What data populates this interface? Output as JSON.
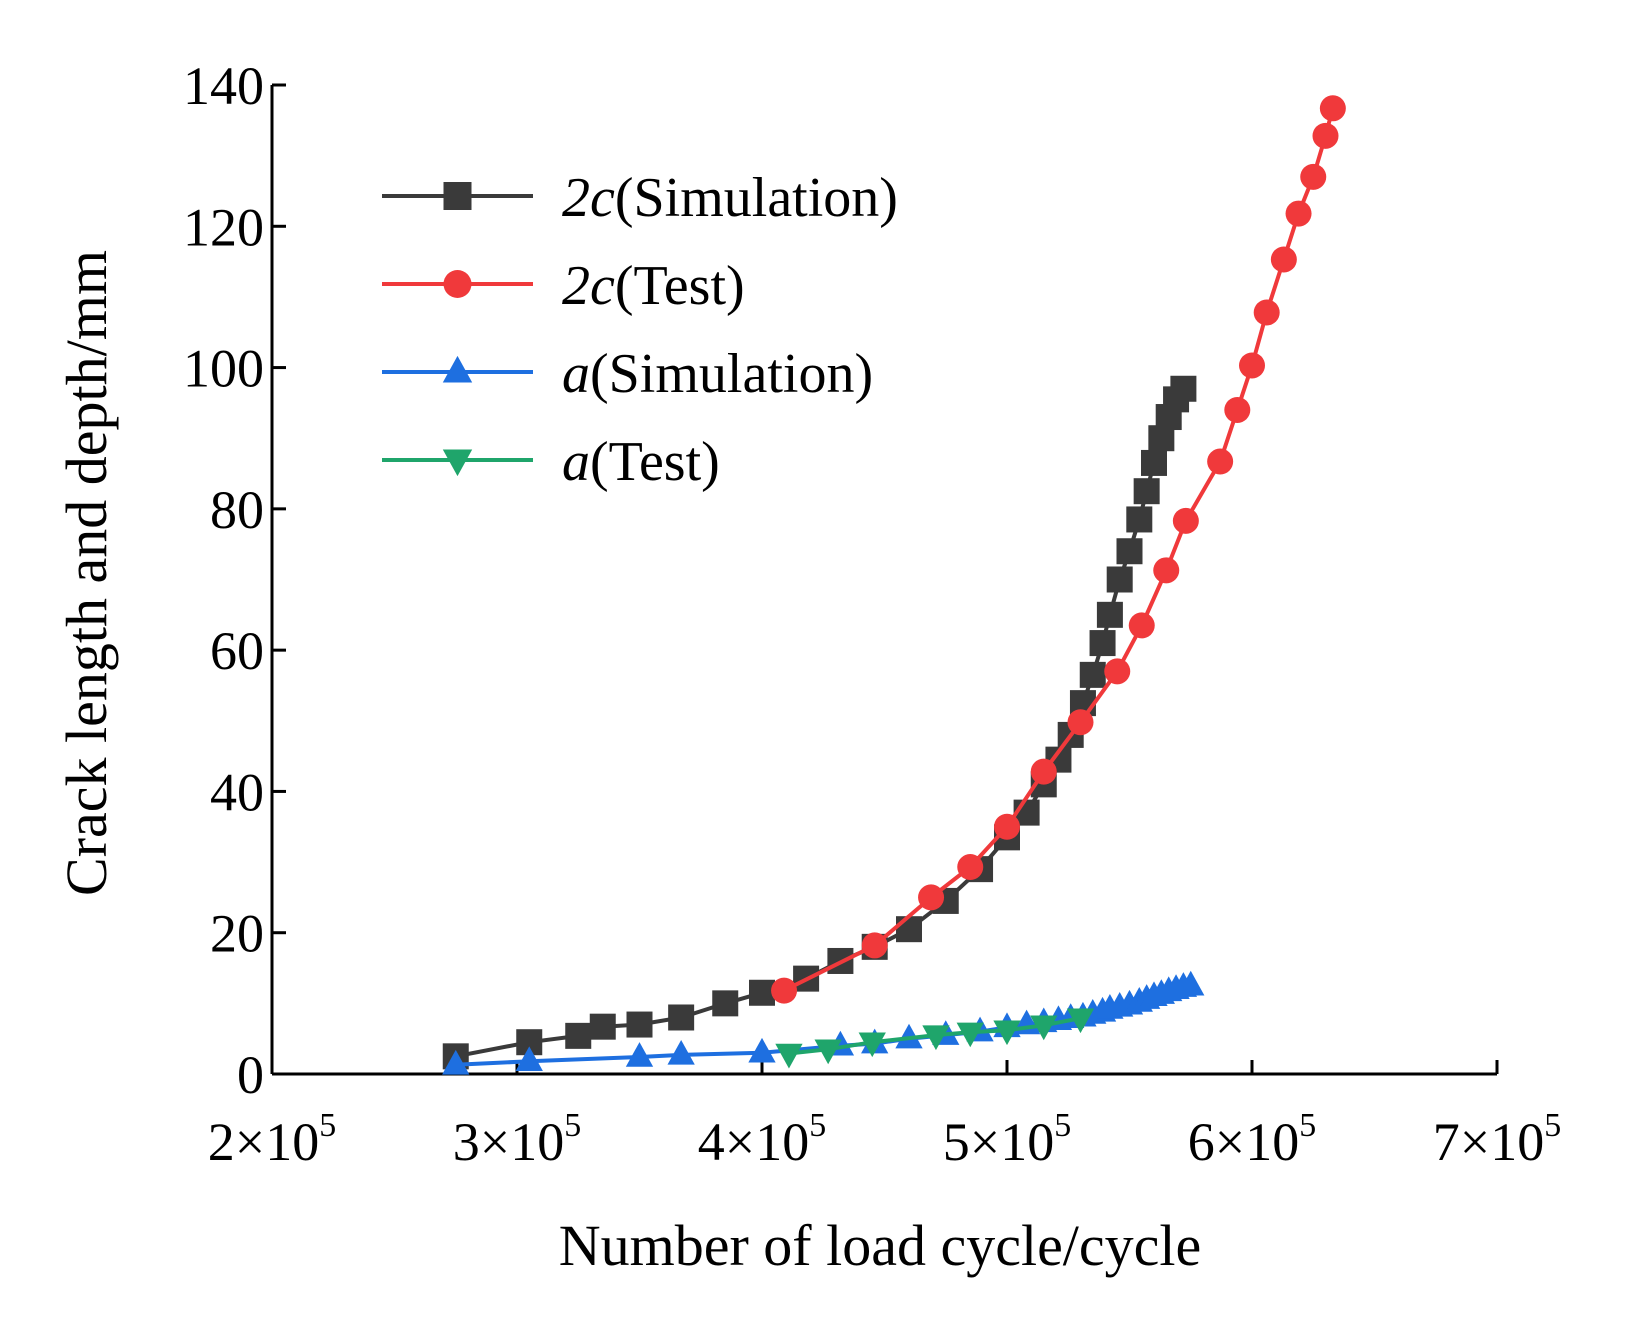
{
  "chart_data": {
    "type": "line",
    "title": "",
    "xlabel": "Number of load cycle/cycle",
    "ylabel": "Crack length and depth/mm",
    "xlim": [
      200000,
      700000
    ],
    "ylim": [
      0,
      140
    ],
    "x_ticks": [
      {
        "value": 200000,
        "mantissa": "2",
        "times": "×10",
        "exp": "5"
      },
      {
        "value": 300000,
        "mantissa": "3",
        "times": "×10",
        "exp": "5"
      },
      {
        "value": 400000,
        "mantissa": "4",
        "times": "×10",
        "exp": "5"
      },
      {
        "value": 500000,
        "mantissa": "5",
        "times": "×10",
        "exp": "5"
      },
      {
        "value": 600000,
        "mantissa": "6",
        "times": "×10",
        "exp": "5"
      },
      {
        "value": 700000,
        "mantissa": "7",
        "times": "×10",
        "exp": "5"
      }
    ],
    "y_ticks": [
      {
        "value": 0,
        "label": "0"
      },
      {
        "value": 20,
        "label": "20"
      },
      {
        "value": 40,
        "label": "40"
      },
      {
        "value": 60,
        "label": "60"
      },
      {
        "value": 80,
        "label": "80"
      },
      {
        "value": 100,
        "label": "100"
      },
      {
        "value": 120,
        "label": "120"
      },
      {
        "value": 140,
        "label": "140"
      }
    ],
    "legend_position": "top-left",
    "series": [
      {
        "name": "2c(Simulation)",
        "legend_symbol": "2c",
        "legend_suffix": "(Simulation)",
        "color": "#3a3a3a",
        "marker": "square",
        "x": [
          275000,
          305000,
          325000,
          335000,
          350000,
          367000,
          385000,
          400000,
          418000,
          432000,
          446000,
          460000,
          475000,
          489000,
          500000,
          508000,
          515000,
          521000,
          526000,
          531000,
          535000,
          539000,
          542000,
          546000,
          550000,
          554000,
          557000,
          560000,
          563000,
          566000,
          569000,
          572000
        ],
        "y": [
          2.5,
          4.5,
          5.4,
          6.7,
          7.0,
          8.0,
          10.0,
          11.5,
          13.5,
          16.0,
          18.0,
          20.5,
          24.5,
          29.0,
          33.5,
          37.0,
          41.0,
          44.5,
          48.0,
          52.5,
          56.5,
          61.0,
          65.0,
          70.0,
          74.0,
          78.5,
          82.5,
          86.5,
          90.0,
          93.0,
          95.5,
          97.0
        ]
      },
      {
        "name": "2c(Test)",
        "legend_symbol": "2c",
        "legend_suffix": "(Test)",
        "color": "#f0393b",
        "marker": "circle",
        "x": [
          409000,
          446000,
          469000,
          485000,
          500000,
          515000,
          530000,
          545000,
          555000,
          565000,
          573000,
          587000,
          594000,
          600000,
          606000,
          613000,
          619000,
          625000,
          630000,
          633000
        ],
        "y": [
          11.8,
          18.2,
          25.0,
          29.3,
          35.0,
          42.8,
          49.8,
          57.0,
          63.5,
          71.3,
          78.3,
          86.7,
          94.0,
          100.3,
          107.8,
          115.3,
          121.8,
          127.0,
          132.8,
          136.7
        ]
      },
      {
        "name": "a(Simulation)",
        "legend_symbol": "a",
        "legend_suffix": "(Simulation)",
        "color": "#1e6fe0",
        "marker": "triangle-up",
        "x": [
          275000,
          305000,
          350000,
          367000,
          400000,
          432000,
          446000,
          460000,
          475000,
          489000,
          500000,
          508000,
          515000,
          521000,
          526000,
          531000,
          535000,
          539000,
          542000,
          546000,
          550000,
          554000,
          557000,
          560000,
          563000,
          566000,
          569000,
          572000,
          575000
        ],
        "y": [
          1.3,
          1.8,
          2.4,
          2.7,
          3.0,
          4.0,
          4.3,
          5.0,
          5.5,
          6.0,
          6.6,
          7.0,
          7.3,
          7.6,
          7.9,
          8.1,
          8.5,
          8.8,
          9.2,
          9.5,
          9.8,
          10.2,
          10.6,
          11.0,
          11.3,
          11.7,
          12.0,
          12.3,
          12.5
        ]
      },
      {
        "name": "a(Test)",
        "legend_symbol": "a",
        "legend_suffix": "(Test)",
        "color": "#1fa56b",
        "marker": "triangle-down",
        "x": [
          411000,
          427000,
          445000,
          471000,
          485000,
          500000,
          515000,
          530000
        ],
        "y": [
          2.9,
          3.5,
          4.5,
          5.5,
          5.9,
          6.2,
          6.9,
          7.9
        ]
      }
    ]
  }
}
